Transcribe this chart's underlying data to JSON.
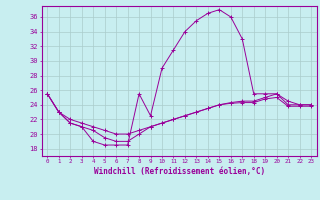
{
  "xlabel": "Windchill (Refroidissement éolien,°C)",
  "background_color": "#c8eef0",
  "grid_color": "#aacccc",
  "line_color": "#990099",
  "x_ticks": [
    0,
    1,
    2,
    3,
    4,
    5,
    6,
    7,
    8,
    9,
    10,
    11,
    12,
    13,
    14,
    15,
    16,
    17,
    18,
    19,
    20,
    21,
    22,
    23
  ],
  "y_ticks": [
    18,
    20,
    22,
    24,
    26,
    28,
    30,
    32,
    34,
    36
  ],
  "ylim": [
    17.0,
    37.5
  ],
  "xlim": [
    -0.5,
    23.5
  ],
  "line1_y": [
    25.5,
    23.0,
    21.5,
    21.0,
    19.0,
    18.5,
    18.5,
    18.5,
    25.5,
    22.5,
    29.0,
    31.5,
    34.0,
    35.5,
    36.5,
    37.0,
    36.0,
    33.0,
    25.5,
    25.5,
    25.5,
    24.5,
    24.0,
    24.0
  ],
  "line2_y": [
    25.5,
    23.0,
    22.0,
    21.5,
    21.0,
    20.5,
    20.0,
    20.0,
    20.5,
    21.0,
    21.5,
    22.0,
    22.5,
    23.0,
    23.5,
    24.0,
    24.3,
    24.5,
    24.5,
    25.0,
    25.5,
    24.0,
    24.0,
    24.0
  ],
  "line3_y": [
    25.5,
    23.0,
    21.5,
    21.0,
    20.5,
    19.5,
    19.0,
    19.0,
    20.0,
    21.0,
    21.5,
    22.0,
    22.5,
    23.0,
    23.5,
    24.0,
    24.2,
    24.3,
    24.3,
    24.8,
    25.0,
    23.8,
    23.8,
    23.8
  ]
}
